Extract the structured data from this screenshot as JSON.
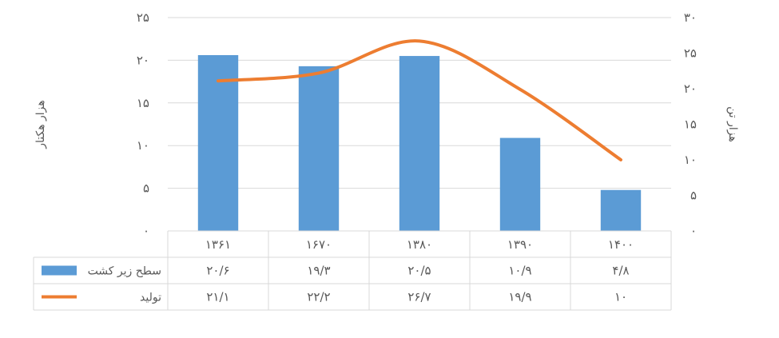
{
  "chart_data": {
    "type": "bar",
    "categories": [
      "۱۳۶۱",
      "۱۶۷۰",
      "۱۳۸۰",
      "۱۳۹۰",
      "۱۴۰۰"
    ],
    "series": [
      {
        "name": "سطح زیر کشت",
        "type": "bar",
        "axis": "left",
        "color": "#5B9BD5",
        "values": [
          20.6,
          19.3,
          20.5,
          10.9,
          4.8
        ],
        "table_values": [
          "۲۰/۶",
          "۱۹/۳",
          "۲۰/۵",
          "۱۰/۹",
          "۴/۸"
        ]
      },
      {
        "name": "تولید",
        "type": "line",
        "axis": "right",
        "color": "#ED7D31",
        "values": [
          21.1,
          22.2,
          26.7,
          19.9,
          10
        ],
        "table_values": [
          "۲۱/۱",
          "۲۲/۲",
          "۲۶/۷",
          "۱۹/۹",
          "۱۰"
        ]
      }
    ],
    "left_axis": {
      "label": "هزار هکتار",
      "ylim": [
        0,
        25
      ],
      "ticks": [
        0,
        5,
        10,
        15,
        20,
        25
      ],
      "tick_labels": [
        "۰",
        "۵",
        "۱۰",
        "۱۵",
        "۲۰",
        "۲۵"
      ]
    },
    "right_axis": {
      "label": "هزار تن",
      "ylim": [
        0,
        30
      ],
      "ticks": [
        0,
        5,
        10,
        15,
        20,
        25,
        30
      ],
      "tick_labels": [
        "۰",
        "۵",
        "۱۰",
        "۱۵",
        "۲۰",
        "۲۵",
        "۳۰"
      ]
    },
    "grid": true,
    "legend": "data-table",
    "grid_color": "#D9D9D9"
  }
}
